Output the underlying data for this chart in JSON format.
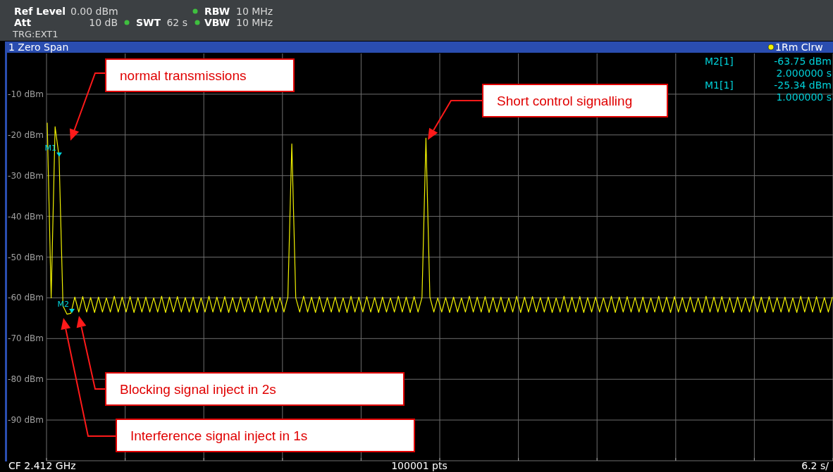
{
  "chart_data": {
    "type": "line",
    "title": "1 Zero Span",
    "categories": [
      null,
      null,
      null,
      null,
      null,
      null,
      null,
      null,
      null,
      null,
      null,
      null,
      null,
      null,
      null,
      null,
      null,
      null,
      null,
      null,
      null,
      null,
      null,
      null,
      null,
      null,
      null,
      null,
      null,
      null,
      null,
      null,
      null,
      null,
      null,
      null,
      null,
      null,
      null,
      null,
      null,
      null,
      null,
      null,
      null,
      null,
      null,
      null,
      null,
      null,
      null,
      null,
      null,
      null,
      null,
      null,
      null,
      null,
      null,
      null,
      null,
      null,
      null,
      null,
      null,
      null,
      null,
      null,
      null,
      null,
      null,
      null,
      null,
      null,
      null,
      null,
      null,
      null,
      null,
      null,
      null,
      null,
      null,
      null,
      null,
      null,
      null,
      null,
      null,
      null,
      null,
      null,
      null,
      null,
      null,
      null,
      null,
      null,
      null,
      null,
      null,
      null,
      null,
      null,
      null,
      null,
      null,
      null,
      null,
      null,
      null,
      null,
      null,
      null,
      null,
      null,
      null,
      null,
      null,
      null,
      null,
      null,
      null,
      null,
      null,
      null,
      null,
      null,
      null,
      null,
      null,
      null,
      null,
      null,
      null,
      null,
      null,
      null,
      null,
      null,
      null,
      null,
      null,
      null,
      null,
      null,
      null,
      null,
      null,
      null,
      null,
      null,
      null,
      null,
      null,
      null,
      null,
      null,
      null,
      null,
      null,
      null,
      null,
      null,
      null,
      null,
      null,
      null,
      null,
      null,
      null,
      null,
      null,
      null,
      null,
      null,
      null,
      null,
      null,
      null,
      null,
      null,
      null,
      null,
      null,
      null,
      null,
      null,
      null,
      null,
      null,
      null,
      null,
      null,
      null,
      null,
      null,
      null,
      null,
      null
    ],
    "ylim": [
      -100,
      0
    ],
    "yticks": [
      {
        "value": -10,
        "label": "-10 dBm"
      },
      {
        "value": -20,
        "label": "-20 dBm"
      },
      {
        "value": -30,
        "label": "-30 dBm"
      },
      {
        "value": -40,
        "label": "-40 dBm"
      },
      {
        "value": -50,
        "label": "-50 dBm"
      },
      {
        "value": -60,
        "label": "-60 dBm"
      },
      {
        "value": -70,
        "label": "-70 dBm"
      },
      {
        "value": -80,
        "label": "-80 dBm"
      },
      {
        "value": -90,
        "label": "-90 dBm"
      }
    ],
    "grid": true,
    "legend": "top right",
    "tick_labels": "y",
    "marker": "none",
    "line_style": "solid",
    "series": [
      {
        "name": "1Rm Clrw",
        "color": "#f2f200",
        "values": [
          -17,
          -60,
          -18,
          -25.3,
          -62,
          -64,
          -63.8,
          -59.8,
          -63.5,
          -59.7,
          -63.5,
          -59.9,
          -63.6,
          -59.8,
          -63.5,
          -60,
          -63.5,
          -59.6,
          -63.5,
          -59.8,
          -63.5,
          -59.7,
          -63.6,
          -59.9,
          -63.5,
          -59.8,
          -63.5,
          -60,
          -63.5,
          -59.6,
          -63.6,
          -59.8,
          -63.5,
          -59.7,
          -63.5,
          -59.9,
          -63.5,
          -59.8,
          -63.6,
          -60,
          -63.5,
          -59.6,
          -63.5,
          -59.8,
          -63.5,
          -59.7,
          -63.6,
          -59.9,
          -63.5,
          -59.8,
          -63.5,
          -60,
          -63.5,
          -59.6,
          -63.6,
          -59.8,
          -63.5,
          -59.7,
          -63.5,
          -59.9,
          -63.5,
          -59.8,
          -22.2,
          -60,
          -63.5,
          -59.6,
          -63.5,
          -59.8,
          -63.6,
          -59.7,
          -63.5,
          -59.9,
          -63.5,
          -59.8,
          -63.5,
          -60,
          -63.6,
          -59.6,
          -63.5,
          -59.8,
          -63.5,
          -59.7,
          -63.5,
          -59.9,
          -63.6,
          -59.8,
          -63.5,
          -60,
          -63.5,
          -59.6,
          -63.5,
          -59.8,
          -63.6,
          -59.7,
          -63.5,
          -59.9,
          -20.8,
          -59.8,
          -63.5,
          -60,
          -63.5,
          -59.9,
          -63.6,
          -59.8,
          -63.5,
          -60,
          -63.5,
          -59.6,
          -63.5,
          -59.8,
          -63.5,
          -59.7,
          -63.6,
          -59.9,
          -63.5,
          -59.8,
          -63.5,
          -60,
          -63.5,
          -59.6,
          -63.6,
          -59.8,
          -63.5,
          -59.7,
          -63.5,
          -59.9,
          -63.5,
          -59.8,
          -63.6,
          -60,
          -63.5,
          -59.6,
          -63.5,
          -59.8,
          -63.5,
          -59.7,
          -63.6,
          -59.9,
          -63.5,
          -59.8,
          -63.5,
          -60,
          -63.5,
          -59.6,
          -63.6,
          -59.8,
          -63.5,
          -59.7,
          -63.5,
          -59.9,
          -63.5,
          -59.8,
          -63.6,
          -60,
          -63.5,
          -59.6,
          -63.5,
          -59.8,
          -63.6,
          -59.7,
          -63.5,
          -59.9,
          -63.5,
          -59.8,
          -63.5,
          -60,
          -63.6,
          -59.6,
          -63.5,
          -59.8,
          -63.5,
          -59.7,
          -63.5,
          -59.9,
          -63.6,
          -59.8,
          -63.5,
          -60,
          -63.5,
          -59.6,
          -63.5,
          -59.8,
          -63.6,
          -59.7,
          -63.5,
          -59.9,
          -63.5,
          -59.8,
          -63.5,
          -60,
          -63.6,
          -59.6,
          -63.5,
          -59.8,
          -63.5,
          -59.7,
          -63.6,
          -59.9,
          -63.5,
          -59.8
        ]
      }
    ],
    "annotations": [
      "Ref Level",
      "0.00 dBm",
      "Att",
      "10 dB",
      "SWT",
      "62 s",
      "RBW",
      "10 MHz",
      "VBW",
      "10 MHz",
      "TRG:EXT1",
      "M2[1]",
      "-63.75 dBm",
      "2.000000 s",
      "M1[1]",
      "-25.34 dBm",
      "1.000000 s",
      "CF 2.412 GHz",
      "100001 pts",
      "6.2 s/",
      "normal transmissions",
      "Short control signalling",
      "Blocking signal inject in 2s",
      "Interference signal inject in 1s",
      {
        "text": "M1",
        "y": -25.34
      },
      {
        "text": "M2",
        "y": -63.75
      }
    ]
  }
}
